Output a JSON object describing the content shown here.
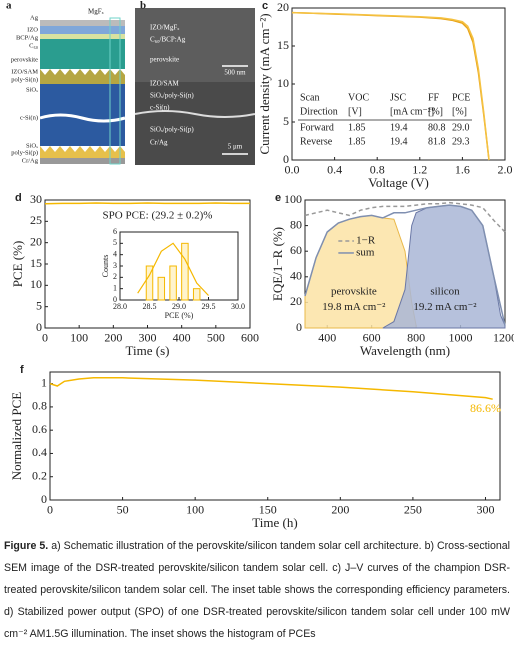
{
  "schematic": {
    "panel_label": "a",
    "top_label": "MgFₓ",
    "labels": [
      "Ag",
      "IZO",
      "BCP/Ag",
      "C₆₀",
      "perovskite",
      "IZO/SAM",
      "poly-Si(n)",
      "SiOₓ",
      "c-Si(n)",
      "SiOₓ",
      "poly-Si(p)",
      "Cr/Ag"
    ]
  },
  "sem": {
    "panel_label": "b",
    "labels": [
      "IZO/MgFₓ",
      "C₆₀/BCP:Ag",
      "perovskite",
      "IZO/SAM",
      "SiOₓ/poly-Si(n)",
      "c-Si(n)",
      "SiOₓ/poly-Si(p)",
      "Cr/Ag"
    ],
    "scale_bars": [
      "500 nm",
      "5 μm"
    ]
  },
  "chart_data": [
    {
      "type": "line",
      "panel_label": "c",
      "x_label": "Voltage (V)",
      "y_label": "Current density (mA cm⁻²)",
      "xlim": [
        0,
        2.0
      ],
      "xticks": [
        {
          "value": 0,
          "label": "0.0"
        },
        0.4,
        0.8,
        1.2,
        1.6,
        {
          "value": 2.0,
          "label": "2.0"
        }
      ],
      "ylim": [
        0,
        20
      ],
      "yticks": [
        0,
        5,
        10,
        15,
        20
      ],
      "x": [
        0,
        0.2,
        0.4,
        0.6,
        0.8,
        1.0,
        1.2,
        1.4,
        1.5,
        1.6,
        1.65,
        1.7,
        1.75,
        1.8,
        1.85
      ],
      "series": [
        {
          "color": "#e8a317",
          "values": [
            19.4,
            19.3,
            19.2,
            19.1,
            19.0,
            18.9,
            18.8,
            18.6,
            18.4,
            18.0,
            17.3,
            15.5,
            11.5,
            6,
            0
          ]
        },
        {
          "color": "#f5c242",
          "values": [
            19.4,
            19.3,
            19.25,
            19.15,
            19.05,
            18.95,
            18.85,
            18.7,
            18.5,
            18.2,
            17.6,
            16.0,
            12.0,
            6.3,
            0
          ]
        }
      ],
      "table": {
        "header": [
          [
            "Scan",
            "VOC",
            "JSC",
            "FF",
            "PCE"
          ],
          [
            "Direction",
            "[V]",
            "[mA cm⁻²]",
            "[%]",
            "[%]"
          ]
        ],
        "rows": [
          [
            "Forward",
            "1.85",
            "19.4",
            "80.8",
            "29.0"
          ],
          [
            "Reverse",
            "1.85",
            "19.4",
            "81.8",
            "29.3"
          ]
        ]
      }
    },
    {
      "type": "line",
      "panel_label": "d",
      "x_label": "Time (s)",
      "y_label": "PCE (%)",
      "xlim": [
        0,
        600
      ],
      "xticks": [
        0,
        100,
        200,
        300,
        400,
        500,
        600
      ],
      "ylim": [
        0,
        30
      ],
      "yticks": [
        0,
        5,
        10,
        15,
        20,
        25,
        30
      ],
      "x": [
        0,
        50,
        100,
        150,
        200,
        250,
        300,
        350,
        400,
        450,
        500,
        550,
        600
      ],
      "series": [
        {
          "color": "#f5b800",
          "values": [
            29.1,
            29.2,
            29.2,
            29.3,
            29.2,
            29.2,
            29.3,
            29.2,
            29.2,
            29.2,
            29.3,
            29.2,
            29.2
          ]
        }
      ],
      "annotations": [
        "SPO PCE: (29.2 ± 0.2)%"
      ],
      "inset": {
        "type": "histogram",
        "x_label": "PCE (%)",
        "y_label": "Counts",
        "color": "#f5b800",
        "bins": [
          28.4,
          28.6,
          28.8,
          29.0,
          29.2,
          29.4
        ],
        "counts": [
          3,
          2,
          3,
          5,
          1
        ],
        "xlim": [
          28.0,
          30.0
        ],
        "xticks": [
          {
            "value": 28.0,
            "label": "28.0"
          },
          28.5,
          {
            "value": 29.0,
            "label": "29.0"
          },
          29.5,
          {
            "value": 30.0,
            "label": "30.0"
          }
        ],
        "ylim": [
          0,
          6
        ],
        "yticks": [
          0,
          1,
          2,
          3,
          4,
          5,
          6
        ],
        "fit": {
          "x": [
            28.3,
            28.5,
            28.7,
            28.9,
            29.1,
            29.3,
            29.5
          ],
          "values": [
            0.6,
            2.2,
            4.3,
            5.0,
            3.6,
            1.5,
            0.4
          ]
        }
      }
    },
    {
      "type": "area",
      "panel_label": "e",
      "x_label": "Wavelength (nm)",
      "y_label": "EQE/1−R (%)",
      "xlim": [
        300,
        1200
      ],
      "xticks": [
        400,
        600,
        800,
        1000,
        1200
      ],
      "ylim": [
        0,
        100
      ],
      "yticks": [
        0,
        20,
        40,
        60,
        80,
        100
      ],
      "series": [
        {
          "name": "perovskite",
          "style": "area",
          "color": "#e9b84a",
          "fill": "#fbe3a4",
          "x": [
            300,
            350,
            400,
            450,
            500,
            550,
            600,
            650,
            700,
            750,
            780,
            800
          ],
          "values": [
            25,
            55,
            75,
            82,
            85,
            87,
            88,
            86,
            85,
            60,
            20,
            2
          ]
        },
        {
          "name": "silicon",
          "style": "area",
          "color": "#6b78a6",
          "fill": "#a9b6d6",
          "x": [
            650,
            700,
            750,
            780,
            800,
            850,
            900,
            950,
            1000,
            1050,
            1100,
            1150,
            1180,
            1200
          ],
          "values": [
            0,
            5,
            30,
            80,
            90,
            94,
            95,
            96,
            95,
            92,
            80,
            40,
            10,
            2
          ]
        },
        {
          "name": "1−R",
          "style": "dashed",
          "color": "#999999",
          "x": [
            300,
            350,
            400,
            450,
            500,
            550,
            600,
            650,
            700,
            750,
            800,
            850,
            900,
            950,
            1000,
            1050,
            1100,
            1150,
            1200
          ],
          "values": [
            88,
            90,
            92,
            90,
            88,
            92,
            94,
            95,
            95,
            95,
            96,
            97,
            97,
            98,
            97,
            96,
            94,
            84,
            75
          ]
        },
        {
          "name": "sum",
          "style": "line",
          "color": "#7f8fb0",
          "x": [
            300,
            350,
            400,
            450,
            500,
            550,
            600,
            650,
            700,
            750,
            800,
            850,
            900,
            950,
            1000,
            1050,
            1100,
            1150,
            1200
          ],
          "values": [
            25,
            55,
            75,
            82,
            85,
            87,
            88,
            86,
            90,
            90,
            92,
            94,
            95,
            96,
            95,
            92,
            80,
            40,
            2
          ]
        }
      ],
      "annotations": [
        "19.8 mA cm⁻²",
        "19.2 mA cm⁻²"
      ]
    },
    {
      "type": "line",
      "panel_label": "f",
      "x_label": "Time (h)",
      "y_label": "Normalized PCE",
      "xlim": [
        0,
        310
      ],
      "xticks": [
        0,
        50,
        100,
        150,
        200,
        250,
        300
      ],
      "ylim": [
        0,
        1.1
      ],
      "yticks": [
        0,
        0.2,
        0.4,
        0.6,
        0.8,
        1
      ],
      "x": [
        0,
        5,
        10,
        20,
        30,
        40,
        50,
        100,
        150,
        200,
        250,
        300,
        305
      ],
      "series": [
        {
          "color": "#f5b800",
          "values": [
            1.0,
            0.98,
            1.02,
            1.04,
            1.05,
            1.05,
            1.05,
            1.03,
            1.0,
            0.97,
            0.93,
            0.88,
            0.866
          ]
        }
      ],
      "annotations": [
        "86.6%"
      ]
    }
  ],
  "caption": {
    "label": "Figure 5.",
    "text": "a) Schematic illustration of the perovskite/silicon tandem solar cell architecture. b) Cross-sectional SEM image of the DSR-treated perovskite/silicon tandem solar cell. c) J–V curves of the champion DSR-treated perovskite/silicon tandem solar cell. The inset table shows the corresponding efficiency parameters. d) Stabilized power output (SPO) of one DSR-treated perovskite/silicon tandem solar cell under 100 mW cm⁻² AM1.5G illumination. The inset shows the histogram of PCEs"
  }
}
